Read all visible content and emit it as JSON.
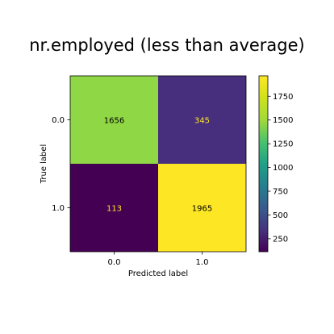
{
  "chart_data": {
    "type": "heatmap",
    "title": "nr.employed (less than average)",
    "xlabel": "Predicted label",
    "ylabel": "True label",
    "x_categories": [
      "0.0",
      "1.0"
    ],
    "y_categories": [
      "0.0",
      "1.0"
    ],
    "matrix": [
      [
        1656,
        345
      ],
      [
        113,
        1965
      ]
    ],
    "colormap": "viridis",
    "colorbar": {
      "range": [
        113,
        1965
      ],
      "ticks": [
        250,
        500,
        750,
        1000,
        1250,
        1500,
        1750
      ],
      "tick_labels": [
        "250",
        "500",
        "750",
        "1000",
        "1250",
        "1500",
        "1750"
      ]
    },
    "cell_colors": [
      [
        "#8fd744",
        "#472f7d"
      ],
      [
        "#440154",
        "#fde725"
      ]
    ],
    "cell_text_colors": [
      [
        "#000000",
        "#fde725"
      ],
      [
        "#fde725",
        "#000000"
      ]
    ]
  }
}
